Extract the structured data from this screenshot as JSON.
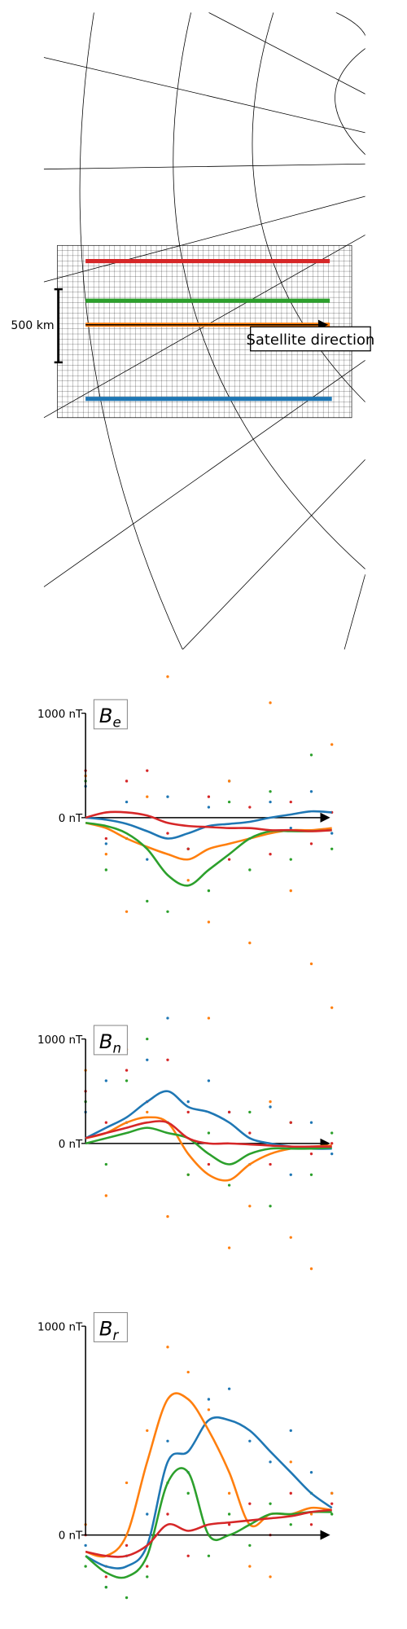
{
  "map": {
    "scale_label": "500 km",
    "direction_label": "Satellite direction"
  },
  "chart_data": [
    {
      "type": "line",
      "title": "B",
      "title_sub": "e",
      "x": [
        0,
        1,
        2,
        3,
        4,
        5,
        6,
        7,
        8,
        9,
        10,
        11,
        12
      ],
      "xlim": [
        0,
        12
      ],
      "ylim": [
        -1500,
        1500
      ],
      "yticks": [
        {
          "value": 1000,
          "label": "1000 nT"
        },
        {
          "value": 0,
          "label": "0 nT"
        }
      ],
      "series": [
        {
          "color": "#1f77b4",
          "values": [
            0,
            -20,
            -60,
            -130,
            -200,
            -150,
            -80,
            -60,
            -40,
            0,
            30,
            60,
            50
          ],
          "points": [
            300,
            -250,
            150,
            -400,
            200,
            -300,
            100,
            350,
            -200,
            150,
            -100,
            250,
            -150
          ]
        },
        {
          "color": "#ff7f0e",
          "values": [
            -50,
            -100,
            -200,
            -280,
            -350,
            -400,
            -300,
            -250,
            -200,
            -150,
            -120,
            -120,
            -100
          ],
          "points": [
            400,
            -350,
            -900,
            200,
            1350,
            -600,
            -1000,
            350,
            -1200,
            1100,
            -700,
            -1400,
            700
          ]
        },
        {
          "color": "#2ca02c",
          "values": [
            -50,
            -80,
            -150,
            -300,
            -550,
            -650,
            -500,
            -350,
            -200,
            -130,
            -130,
            -130,
            -120
          ],
          "points": [
            350,
            -500,
            -200,
            -800,
            -900,
            -300,
            -700,
            150,
            -500,
            250,
            -400,
            600,
            -300
          ]
        },
        {
          "color": "#d62728",
          "values": [
            0,
            50,
            50,
            20,
            -50,
            -80,
            -90,
            -100,
            -100,
            -120,
            -120,
            -130,
            -120
          ],
          "points": [
            450,
            -200,
            350,
            450,
            -150,
            -300,
            200,
            -400,
            100,
            -350,
            150,
            -250,
            50
          ]
        }
      ]
    },
    {
      "type": "line",
      "title": "B",
      "title_sub": "n",
      "x": [
        0,
        1,
        2,
        3,
        4,
        5,
        6,
        7,
        8,
        9,
        10,
        11,
        12
      ],
      "xlim": [
        0,
        12
      ],
      "ylim": [
        -1500,
        1500
      ],
      "yticks": [
        {
          "value": 1000,
          "label": "1000 nT"
        },
        {
          "value": 0,
          "label": "0 nT"
        }
      ],
      "series": [
        {
          "color": "#1f77b4",
          "values": [
            50,
            150,
            250,
            400,
            500,
            350,
            300,
            200,
            50,
            0,
            -30,
            -50,
            -50
          ],
          "points": [
            300,
            600,
            200,
            800,
            1200,
            400,
            600,
            300,
            -200,
            350,
            -300,
            200,
            -100
          ]
        },
        {
          "color": "#ff7f0e",
          "values": [
            50,
            100,
            200,
            250,
            200,
            -100,
            -300,
            -350,
            -200,
            -100,
            -50,
            -30,
            -20
          ],
          "points": [
            700,
            -500,
            900,
            300,
            -700,
            -300,
            1200,
            -1000,
            -600,
            400,
            -900,
            -1200,
            1300
          ]
        },
        {
          "color": "#2ca02c",
          "values": [
            0,
            50,
            100,
            150,
            100,
            50,
            -100,
            -200,
            -100,
            -50,
            -50,
            -50,
            -40
          ],
          "points": [
            400,
            -200,
            600,
            1000,
            200,
            -300,
            100,
            -400,
            300,
            -600,
            200,
            -300,
            100
          ]
        },
        {
          "color": "#d62728",
          "values": [
            50,
            100,
            150,
            200,
            200,
            50,
            0,
            0,
            -10,
            -20,
            -30,
            -30,
            -30
          ],
          "points": [
            500,
            200,
            700,
            400,
            800,
            300,
            -200,
            300,
            100,
            -200,
            200,
            -100,
            0
          ]
        }
      ]
    },
    {
      "type": "line",
      "title": "B",
      "title_sub": "r",
      "x": [
        0,
        1,
        2,
        3,
        4,
        5,
        6,
        7,
        8,
        9,
        10,
        11,
        12
      ],
      "xlim": [
        0,
        12
      ],
      "ylim": [
        -400,
        1100
      ],
      "yticks": [
        {
          "value": 1000,
          "label": "1000 nT"
        },
        {
          "value": 0,
          "label": "0 nT"
        }
      ],
      "series": [
        {
          "color": "#1f77b4",
          "values": [
            -100,
            -150,
            -150,
            -50,
            350,
            400,
            550,
            550,
            500,
            400,
            300,
            200,
            130
          ],
          "points": [
            -50,
            -250,
            -100,
            100,
            450,
            300,
            650,
            700,
            450,
            350,
            500,
            300,
            200
          ]
        },
        {
          "color": "#ff7f0e",
          "values": [
            -80,
            -100,
            0,
            350,
            650,
            650,
            500,
            300,
            50,
            100,
            100,
            130,
            120
          ],
          "points": [
            50,
            -150,
            250,
            500,
            900,
            780,
            600,
            200,
            -150,
            -200,
            350,
            100,
            200
          ]
        },
        {
          "color": "#2ca02c",
          "values": [
            -100,
            -180,
            -200,
            -100,
            250,
            300,
            0,
            0,
            50,
            100,
            100,
            110,
            110
          ],
          "points": [
            -150,
            -250,
            -300,
            -200,
            250,
            200,
            -100,
            100,
            -50,
            150,
            50,
            200,
            100
          ]
        },
        {
          "color": "#d62728",
          "values": [
            -80,
            -100,
            -100,
            -50,
            50,
            20,
            50,
            60,
            70,
            80,
            90,
            110,
            120
          ],
          "points": [
            0,
            -200,
            -50,
            -150,
            100,
            -100,
            0,
            50,
            150,
            0,
            200,
            50,
            150
          ]
        }
      ]
    }
  ]
}
